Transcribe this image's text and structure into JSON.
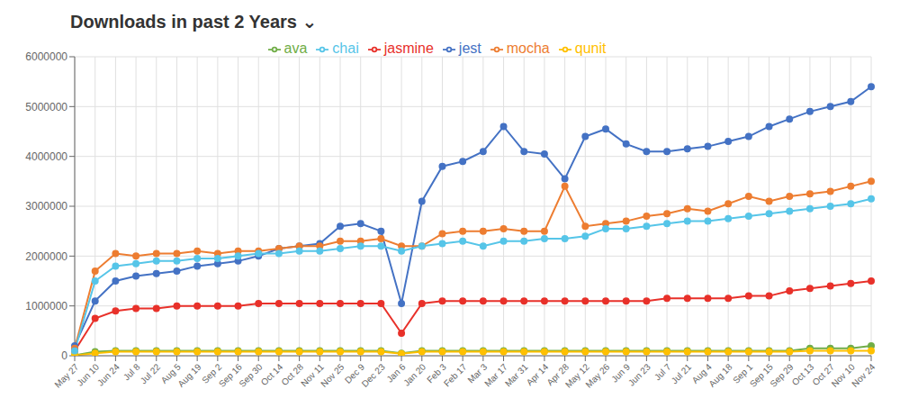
{
  "chart_data": {
    "type": "line",
    "title": "Downloads in past 2 Years ⌄",
    "categories": [
      "May 27",
      "Jun 10",
      "Jun 24",
      "Jul 8",
      "Jul 22",
      "Aug 5",
      "Aug 19",
      "Sep 2",
      "Sep 16",
      "Sep 30",
      "Oct 14",
      "Oct 28",
      "Nov 11",
      "Nov 25",
      "Dec 9",
      "Dec 23",
      "Jan 6",
      "Jan 20",
      "Feb 3",
      "Feb 17",
      "Mar 3",
      "Mar 17",
      "Mar 31",
      "Apr 14",
      "Apr 28",
      "May 12",
      "May 26",
      "Jun 9",
      "Jun 23",
      "Jul 7",
      "Jul 21",
      "Aug 4",
      "Aug 18",
      "Sep 1",
      "Sep 15",
      "Sep 29",
      "Oct 13",
      "Oct 27",
      "Nov 10",
      "Nov 24"
    ],
    "series": [
      {
        "name": "jest",
        "color": "#4472C4",
        "marker": "circle",
        "values": [
          200000,
          1100000,
          1500000,
          1600000,
          1650000,
          1700000,
          1800000,
          1850000,
          1900000,
          2000000,
          2150000,
          2200000,
          2250000,
          2600000,
          2650000,
          2500000,
          1050000,
          3100000,
          3800000,
          3900000,
          4100000,
          4600000,
          4100000,
          4050000,
          3550000,
          4400000,
          4550000,
          4250000,
          4100000,
          4100000,
          4150000,
          4200000,
          4300000,
          4400000,
          4600000,
          4750000,
          4900000,
          5000000,
          5100000,
          5400000
        ]
      },
      {
        "name": "mocha",
        "color": "#ED7D31",
        "marker": "circle",
        "values": [
          150000,
          1700000,
          2050000,
          2000000,
          2050000,
          2050000,
          2100000,
          2050000,
          2100000,
          2100000,
          2150000,
          2200000,
          2200000,
          2300000,
          2300000,
          2350000,
          2200000,
          2200000,
          2450000,
          2500000,
          2500000,
          2550000,
          2500000,
          2500000,
          3400000,
          2600000,
          2650000,
          2700000,
          2800000,
          2850000,
          2950000,
          2900000,
          3050000,
          3200000,
          3100000,
          3200000,
          3250000,
          3300000,
          3400000,
          3500000
        ]
      },
      {
        "name": "ava",
        "color": "#70AD47",
        "marker": "circle",
        "values": [
          10000,
          80000,
          100000,
          100000,
          100000,
          100000,
          100000,
          100000,
          100000,
          100000,
          100000,
          100000,
          100000,
          100000,
          100000,
          100000,
          50000,
          100000,
          100000,
          100000,
          100000,
          100000,
          100000,
          100000,
          100000,
          100000,
          100000,
          100000,
          100000,
          100000,
          100000,
          100000,
          100000,
          100000,
          100000,
          100000,
          150000,
          150000,
          150000,
          200000
        ]
      },
      {
        "name": "jasmine",
        "color": "#E8312A",
        "marker": "circle",
        "values": [
          100000,
          750000,
          900000,
          950000,
          950000,
          1000000,
          1000000,
          1000000,
          1000000,
          1050000,
          1050000,
          1050000,
          1050000,
          1050000,
          1050000,
          1050000,
          450000,
          1050000,
          1100000,
          1100000,
          1100000,
          1100000,
          1100000,
          1100000,
          1100000,
          1100000,
          1100000,
          1100000,
          1100000,
          1150000,
          1150000,
          1150000,
          1150000,
          1200000,
          1200000,
          1300000,
          1350000,
          1400000,
          1450000,
          1500000
        ]
      },
      {
        "name": "qunit",
        "color": "#FFC000",
        "marker": "circle",
        "values": [
          5000,
          50000,
          80000,
          80000,
          80000,
          80000,
          80000,
          80000,
          80000,
          80000,
          80000,
          80000,
          80000,
          80000,
          80000,
          80000,
          40000,
          80000,
          80000,
          80000,
          80000,
          80000,
          80000,
          80000,
          80000,
          80000,
          80000,
          80000,
          80000,
          80000,
          80000,
          80000,
          80000,
          80000,
          80000,
          80000,
          100000,
          100000,
          100000,
          100000
        ]
      },
      {
        "name": "chai",
        "color": "#56C5E8",
        "marker": "circle",
        "values": [
          100000,
          1500000,
          1800000,
          1850000,
          1900000,
          1900000,
          1950000,
          1950000,
          2000000,
          2050000,
          2050000,
          2100000,
          2100000,
          2150000,
          2200000,
          2200000,
          2100000,
          2200000,
          2250000,
          2300000,
          2200000,
          2300000,
          2300000,
          2350000,
          2350000,
          2400000,
          2550000,
          2550000,
          2600000,
          2650000,
          2700000,
          2700000,
          2750000,
          2800000,
          2850000,
          2900000,
          2950000,
          3000000,
          3050000,
          3150000
        ]
      }
    ],
    "ylim": [
      0,
      6000000
    ],
    "yticks": [
      0,
      1000000,
      2000000,
      3000000,
      4000000,
      5000000,
      6000000
    ],
    "grid": true,
    "legend": "top"
  }
}
